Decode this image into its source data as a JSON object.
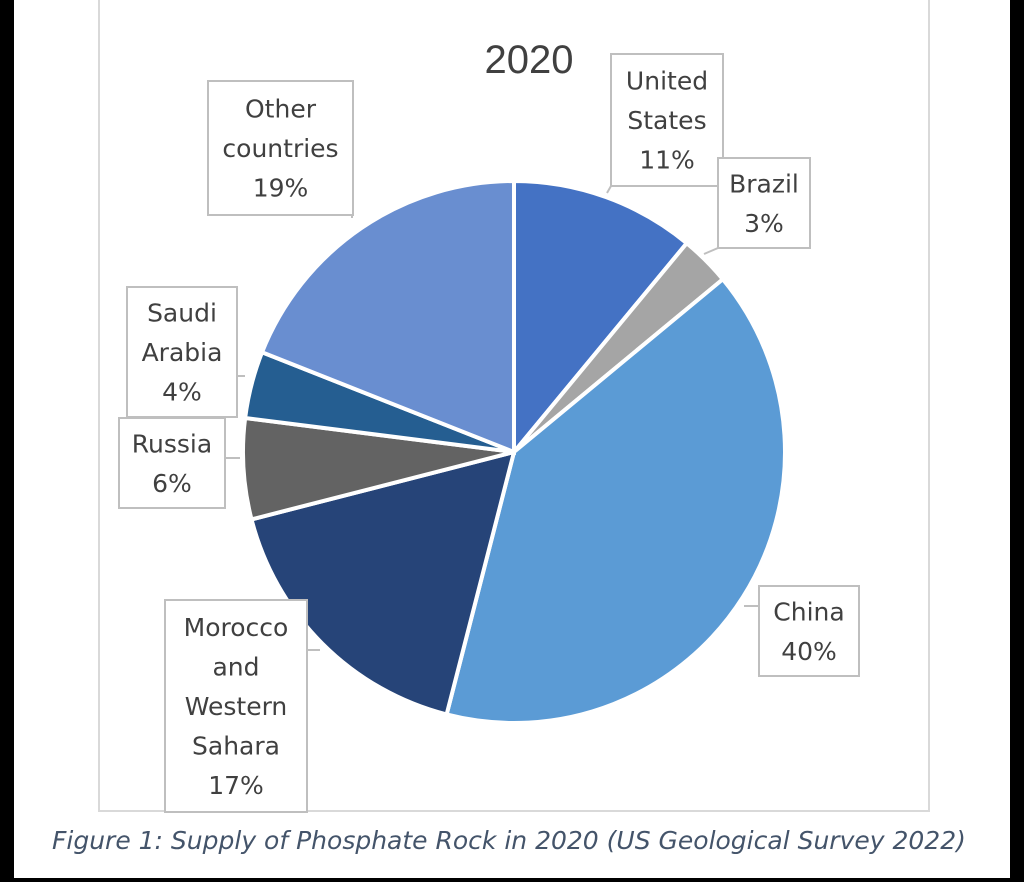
{
  "chart_data": {
    "type": "pie",
    "title": "2020",
    "slices": [
      {
        "label": [
          "United",
          "States"
        ],
        "percent_label": "11%",
        "value": 11,
        "color": "#4472c4"
      },
      {
        "label": [
          "Brazil"
        ],
        "percent_label": "3%",
        "value": 3,
        "color": "#a5a5a5"
      },
      {
        "label": [
          "China"
        ],
        "percent_label": "40%",
        "value": 40,
        "color": "#5b9bd5"
      },
      {
        "label": [
          "Morocco",
          "and",
          "Western",
          "Sahara"
        ],
        "percent_label": "17%",
        "value": 17,
        "color": "#264478"
      },
      {
        "label": [
          "Russia"
        ],
        "percent_label": "6%",
        "value": 6,
        "color": "#636363"
      },
      {
        "label": [
          "Saudi",
          "Arabia"
        ],
        "percent_label": "4%",
        "value": 4,
        "color": "#255e91"
      },
      {
        "label": [
          "Other",
          "countries"
        ],
        "percent_label": "19%",
        "value": 19,
        "color": "#698ed0"
      }
    ]
  },
  "caption": "Figure 1: Supply of Phosphate Rock in 2020 (US Geological Survey 2022)"
}
